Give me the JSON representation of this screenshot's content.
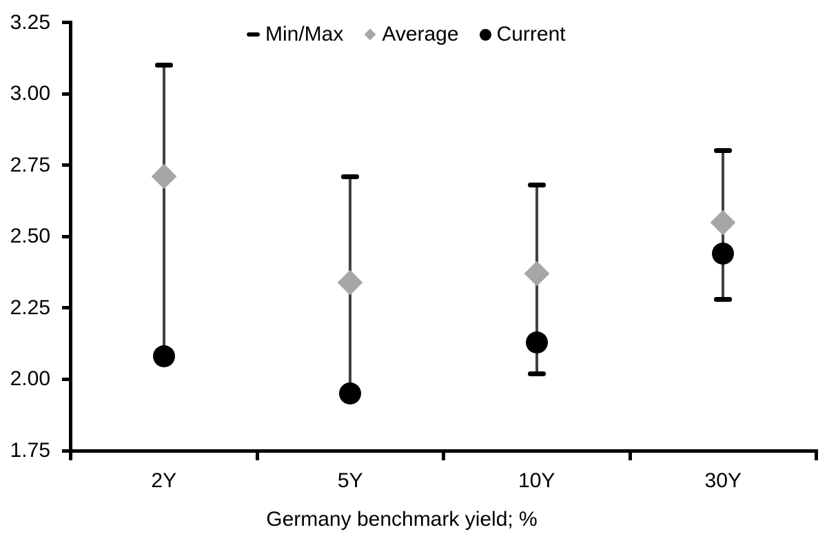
{
  "chart_data": {
    "type": "range_bar",
    "title": "",
    "xlabel": "Germany benchmark yield; %",
    "ylabel": "",
    "categories": [
      "2Y",
      "5Y",
      "10Y",
      "30Y"
    ],
    "series": [
      {
        "name": "Min/Max",
        "type": "minmax_range",
        "max": [
          3.1,
          2.71,
          2.68,
          2.8
        ],
        "min": [
          2.08,
          1.95,
          2.02,
          2.28
        ]
      },
      {
        "name": "Average",
        "type": "point",
        "marker": "diamond",
        "values": [
          2.71,
          2.34,
          2.37,
          2.55
        ]
      },
      {
        "name": "Current",
        "type": "point",
        "marker": "circle",
        "values": [
          2.08,
          1.95,
          2.13,
          2.44
        ]
      }
    ],
    "ylim": [
      1.75,
      3.25
    ],
    "ytick_step": 0.25,
    "ytick_labels": [
      "3.25",
      "3.00",
      "2.75",
      "2.50",
      "2.25",
      "2.00",
      "1.75"
    ],
    "legend": [
      {
        "label": "Min/Max",
        "marker": "dash"
      },
      {
        "label": "Average",
        "marker": "diamond"
      },
      {
        "label": "Current",
        "marker": "circle"
      }
    ],
    "legend_position": "top-center",
    "grid": false,
    "colors": {
      "background": "#ffffff",
      "axis": "#000000",
      "text": "#000000",
      "range_line": "#404040",
      "minmax_cap": "#000000",
      "average_fill": "#a6a6a6",
      "current_fill": "#000000"
    }
  }
}
